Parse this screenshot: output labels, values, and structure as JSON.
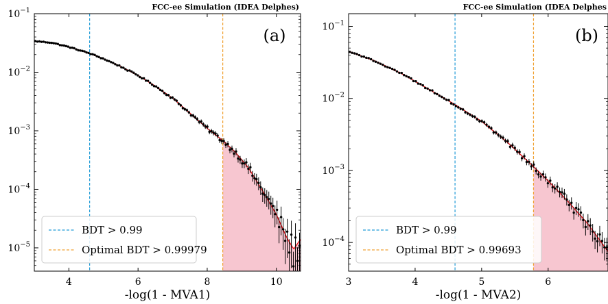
{
  "colors": {
    "data_points": "#000000",
    "fit_line": "#e8141b",
    "signal_fill": "#f7c6d0",
    "bdt_line": "#1f9ad6",
    "optimal_line": "#f0a030"
  },
  "chart_data": [
    {
      "type": "scatter",
      "header": "FCC-ee Simulation (IDEA Delphes)",
      "panel_label": "(a)",
      "xlabel": "-log(1 - MVA1)",
      "ylabel": "",
      "yscale": "log",
      "xlim": [
        3.0,
        10.7
      ],
      "ylim": [
        4e-06,
        0.1
      ],
      "xticks": [
        4,
        6,
        8,
        10
      ],
      "xtick_labels": [
        "4",
        "6",
        "8",
        "10"
      ],
      "yticks": [
        1e-05,
        0.0001,
        0.001,
        0.01,
        0.1
      ],
      "ytick_labels": [
        {
          "base": "10",
          "exp": "−5"
        },
        {
          "base": "10",
          "exp": "−4"
        },
        {
          "base": "10",
          "exp": "−3"
        },
        {
          "base": "10",
          "exp": "−2"
        },
        {
          "base": "10",
          "exp": "−1"
        }
      ],
      "fit_curve": {
        "x": [
          3.0,
          3.5,
          4.0,
          4.6,
          5.0,
          5.5,
          6.0,
          6.5,
          7.0,
          7.5,
          8.0,
          8.45,
          8.8,
          9.2,
          9.6,
          10.0,
          10.3,
          10.5,
          10.7
        ],
        "y": [
          0.034,
          0.032,
          0.027,
          0.021,
          0.017,
          0.0125,
          0.0088,
          0.0058,
          0.0036,
          0.002,
          0.0011,
          0.00068,
          0.00044,
          0.00023,
          9.5e-05,
          3.7e-05,
          1.5e-05,
          9.5e-06,
          1.4e-05
        ]
      },
      "vertical_lines": [
        {
          "x": 4.6,
          "label": "BDT > 0.99",
          "color": "#1f9ad6"
        },
        {
          "x": 8.45,
          "label": "Optimal BDT > 0.99979",
          "color": "#f0a030"
        }
      ],
      "signal_region": {
        "x_min": 8.45
      },
      "legend_position": "lower-left"
    },
    {
      "type": "scatter",
      "header": "FCC-ee Simulation (IDEA Delphes",
      "panel_label": "(b)",
      "xlabel": "-log(1 - MVA2)",
      "ylabel": "",
      "yscale": "log",
      "xlim": [
        3.0,
        6.9
      ],
      "ylim": [
        4e-05,
        0.15
      ],
      "xticks": [
        3,
        4,
        5,
        6
      ],
      "xtick_labels": [
        "3",
        "4",
        "5",
        "6"
      ],
      "yticks": [
        0.0001,
        0.001,
        0.01,
        0.1
      ],
      "ytick_labels": [
        {
          "base": "10",
          "exp": "−4"
        },
        {
          "base": "10",
          "exp": "−3"
        },
        {
          "base": "10",
          "exp": "−2"
        },
        {
          "base": "10",
          "exp": "−1"
        }
      ],
      "fit_curve": {
        "x": [
          3.0,
          3.4,
          3.8,
          4.2,
          4.6,
          5.0,
          5.4,
          5.78,
          6.0,
          6.3,
          6.6,
          6.9
        ],
        "y": [
          0.045,
          0.033,
          0.022,
          0.0135,
          0.0082,
          0.0048,
          0.0024,
          0.00113,
          0.00072,
          0.00037,
          0.00018,
          7.5e-05
        ]
      },
      "vertical_lines": [
        {
          "x": 4.6,
          "label": "BDT > 0.99",
          "color": "#1f9ad6"
        },
        {
          "x": 5.78,
          "label": "Optimal BDT > 0.99693",
          "color": "#f0a030"
        }
      ],
      "signal_region": {
        "x_min": 5.78
      },
      "legend_position": "lower-left"
    }
  ]
}
